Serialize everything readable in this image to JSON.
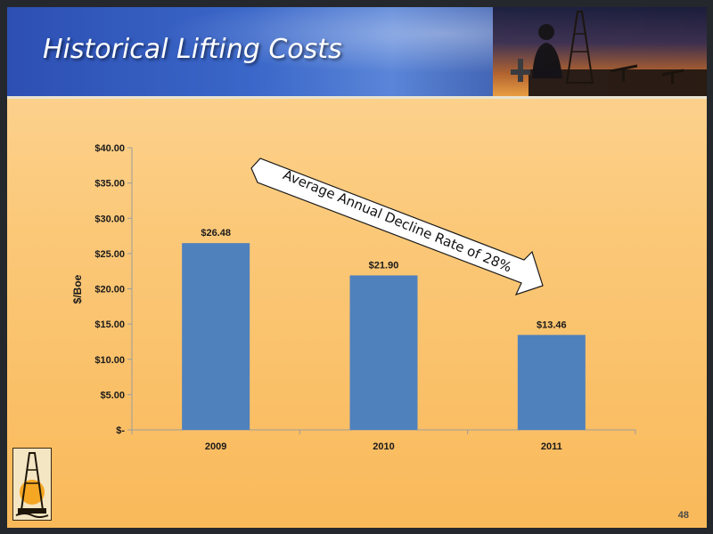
{
  "slide": {
    "title": "Historical Lifting Costs",
    "page_number": "48"
  },
  "annotation": {
    "text": "Average Annual Decline Rate of 28%"
  },
  "colors": {
    "bar": "#4f81bd",
    "axis": "#9c9c9c",
    "text": "#1a1a1a"
  },
  "chart_data": {
    "type": "bar",
    "categories": [
      "2009",
      "2010",
      "2011"
    ],
    "values": [
      26.48,
      21.9,
      13.46
    ],
    "data_labels": [
      "$26.48",
      "$21.90",
      "$13.46"
    ],
    "ylabel": "$/Boe",
    "xlabel": "",
    "title": "",
    "ylim": [
      0,
      40
    ],
    "yticks": [
      0,
      5,
      10,
      15,
      20,
      25,
      30,
      35,
      40
    ],
    "ytick_labels": [
      "$-",
      "$5.00",
      "$10.00",
      "$15.00",
      "$20.00",
      "$25.00",
      "$30.00",
      "$35.00",
      "$40.00"
    ],
    "grid": false,
    "legend": "none"
  }
}
